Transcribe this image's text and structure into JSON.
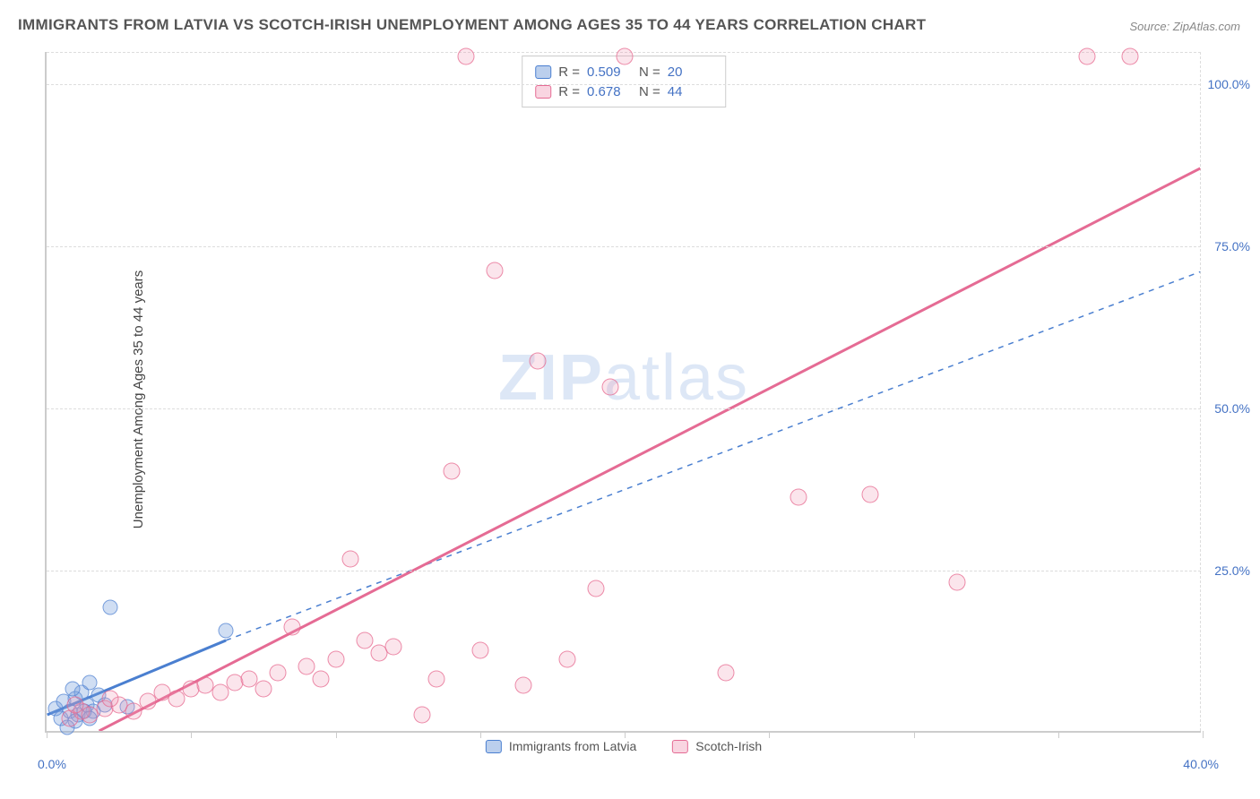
{
  "title": "IMMIGRANTS FROM LATVIA VS SCOTCH-IRISH UNEMPLOYMENT AMONG AGES 35 TO 44 YEARS CORRELATION CHART",
  "source": "Source: ZipAtlas.com",
  "y_axis_label": "Unemployment Among Ages 35 to 44 years",
  "watermark_bold": "ZIP",
  "watermark_light": "atlas",
  "chart": {
    "type": "scatter",
    "xlim": [
      0,
      40
    ],
    "ylim": [
      0,
      105
    ],
    "x_ticks": [
      0,
      5,
      10,
      15,
      20,
      25,
      30,
      35,
      40
    ],
    "x_tick_labels_shown": {
      "0": "0.0%",
      "40": "40.0%"
    },
    "y_ticks": [
      25,
      50,
      75,
      100
    ],
    "y_tick_labels": [
      "25.0%",
      "50.0%",
      "75.0%",
      "100.0%"
    ],
    "background_color": "#ffffff",
    "grid_color": "#dddddd",
    "axis_color": "#cccccc",
    "tick_label_color": "#4472c4",
    "series": [
      {
        "name": "Immigrants from Latvia",
        "color_fill": "rgba(120,160,220,0.35)",
        "color_stroke": "#4a7fd0",
        "marker_size": 17,
        "R": "0.509",
        "N": "20",
        "trend": {
          "x1": 0,
          "y1": 2.5,
          "x2": 6.2,
          "y2": 14,
          "solid_until_x": 6.2,
          "dash_to_x": 40,
          "dash_to_y": 71,
          "color": "#4a7fd0",
          "width_solid": 3,
          "width_dash": 1.5
        },
        "points": [
          [
            0.3,
            3.5
          ],
          [
            0.5,
            2
          ],
          [
            0.6,
            4.5
          ],
          [
            0.8,
            3
          ],
          [
            1.0,
            5
          ],
          [
            1.1,
            2.5
          ],
          [
            1.2,
            6
          ],
          [
            1.4,
            4
          ],
          [
            1.5,
            7.5
          ],
          [
            1.6,
            3
          ],
          [
            1.8,
            5.5
          ],
          [
            2.0,
            4
          ],
          [
            1.0,
            1.5
          ],
          [
            1.3,
            3
          ],
          [
            0.7,
            0.5
          ],
          [
            2.2,
            19
          ],
          [
            6.2,
            15.5
          ],
          [
            1.5,
            2
          ],
          [
            2.8,
            3.8
          ],
          [
            0.9,
            6.5
          ]
        ]
      },
      {
        "name": "Scotch-Irish",
        "color_fill": "rgba(240,150,180,0.25)",
        "color_stroke": "#e56b94",
        "marker_size": 19,
        "R": "0.678",
        "N": "44",
        "trend": {
          "x1": 1.8,
          "y1": 0,
          "x2": 40,
          "y2": 87,
          "color": "#e56b94",
          "width": 3
        },
        "points": [
          [
            0.8,
            2
          ],
          [
            1.2,
            3
          ],
          [
            1.5,
            2.5
          ],
          [
            2.0,
            3.5
          ],
          [
            2.5,
            4
          ],
          [
            3.0,
            3
          ],
          [
            3.5,
            4.5
          ],
          [
            4.0,
            6
          ],
          [
            4.5,
            5
          ],
          [
            5.0,
            6.5
          ],
          [
            5.5,
            7
          ],
          [
            6.0,
            6
          ],
          [
            6.5,
            7.5
          ],
          [
            7.0,
            8
          ],
          [
            7.5,
            6.5
          ],
          [
            8.0,
            9
          ],
          [
            8.5,
            16
          ],
          [
            9.0,
            10
          ],
          [
            9.5,
            8
          ],
          [
            10.0,
            11
          ],
          [
            10.5,
            26.5
          ],
          [
            11.0,
            14
          ],
          [
            11.5,
            12
          ],
          [
            12.0,
            13
          ],
          [
            13.0,
            2.5
          ],
          [
            13.5,
            8
          ],
          [
            14.0,
            40
          ],
          [
            14.5,
            104
          ],
          [
            15.0,
            12.5
          ],
          [
            15.5,
            71
          ],
          [
            16.5,
            7
          ],
          [
            17.0,
            57
          ],
          [
            18.0,
            11
          ],
          [
            19.0,
            22
          ],
          [
            19.5,
            53
          ],
          [
            20.0,
            104
          ],
          [
            23.5,
            9
          ],
          [
            26.0,
            36
          ],
          [
            28.5,
            36.5
          ],
          [
            31.5,
            23
          ],
          [
            36.0,
            104
          ],
          [
            37.5,
            104
          ],
          [
            1.0,
            4
          ],
          [
            2.2,
            5
          ]
        ]
      }
    ]
  },
  "stats_box": {
    "rows": [
      {
        "swatch": "blue",
        "r_label": "R =",
        "r_val": "0.509",
        "n_label": "N =",
        "n_val": "20"
      },
      {
        "swatch": "pink",
        "r_label": "R =",
        "r_val": "0.678",
        "n_label": "N =",
        "n_val": "44"
      }
    ]
  },
  "legend": {
    "items": [
      {
        "swatch": "blue",
        "label": "Immigrants from Latvia"
      },
      {
        "swatch": "pink",
        "label": "Scotch-Irish"
      }
    ]
  }
}
